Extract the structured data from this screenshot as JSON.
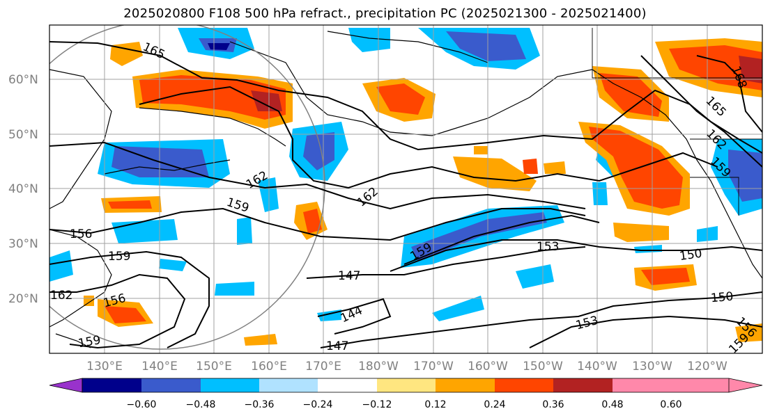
{
  "title": "2025020800 F108 500 hPa refract., precipitation PC (2025021300 - 2025021400)",
  "lat_labels": [
    "60°N",
    "50°N",
    "40°N",
    "30°N",
    "20°N"
  ],
  "lon_labels": [
    "130°E",
    "140°E",
    "150°E",
    "160°E",
    "170°E",
    "180°W",
    "170°W",
    "160°W",
    "150°W",
    "140°W",
    "130°W",
    "120°W"
  ],
  "contour_labels": [
    "165",
    "162",
    "162",
    "159",
    "156",
    "159",
    "156",
    "162",
    "159",
    "147",
    "144",
    "147",
    "159",
    "153",
    "150",
    "150",
    "153",
    "156",
    "159",
    "168",
    "165",
    "162",
    "159"
  ],
  "colorbar": {
    "ticks": [
      "−0.60",
      "−0.48",
      "−0.36",
      "−0.24",
      "−0.12",
      "0.12",
      "0.24",
      "0.36",
      "0.48",
      "0.60"
    ],
    "colors": [
      "#9932CC",
      "#00008B",
      "#3A5BCC",
      "#00BFFF",
      "#B0E2FF",
      "#FFFFFF",
      "#FFE680",
      "#FFA500",
      "#FF4500",
      "#B22222",
      "#FF88AA"
    ]
  }
}
